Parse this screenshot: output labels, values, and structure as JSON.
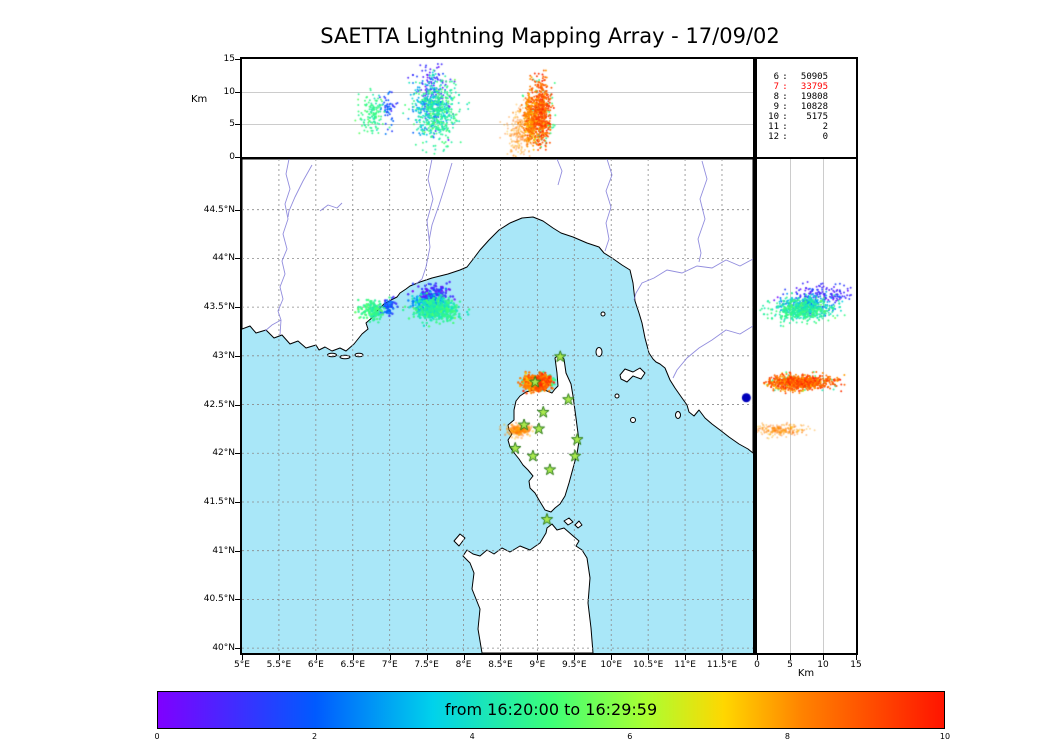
{
  "title": "SAETTA Lightning Mapping Array - 17/09/02",
  "stats_panel": {
    "rows": [
      {
        "label": "6",
        "value": "50905",
        "color": "#000000"
      },
      {
        "label": "7",
        "value": "33795",
        "color": "#ff0000"
      },
      {
        "label": "8",
        "value": "19808",
        "color": "#000000"
      },
      {
        "label": "9",
        "value": "10828",
        "color": "#000000"
      },
      {
        "label": "10",
        "value": "5175",
        "color": "#000000"
      },
      {
        "label": "11",
        "value": "2",
        "color": "#000000"
      },
      {
        "label": "12",
        "value": "0",
        "color": "#000000"
      }
    ]
  },
  "axes": {
    "top": {
      "ylabel": "Km",
      "yticks": [
        {
          "v": 0,
          "label": "0"
        },
        {
          "v": 5,
          "label": "5"
        },
        {
          "v": 10,
          "label": "10"
        },
        {
          "v": 15,
          "label": "15"
        }
      ]
    },
    "right": {
      "xlabel": "Km",
      "xticks": [
        {
          "v": 0,
          "label": "0"
        },
        {
          "v": 5,
          "label": "5"
        },
        {
          "v": 10,
          "label": "10"
        },
        {
          "v": 15,
          "label": "15"
        }
      ]
    },
    "map": {
      "lat_ticks": [
        {
          "v": 44.5,
          "label": "44.5°N"
        },
        {
          "v": 44,
          "label": "44°N"
        },
        {
          "v": 43.5,
          "label": "43.5°N"
        },
        {
          "v": 43,
          "label": "43°N"
        },
        {
          "v": 42.5,
          "label": "42.5°N"
        },
        {
          "v": 42,
          "label": "42°N"
        },
        {
          "v": 41.5,
          "label": "41.5°N"
        },
        {
          "v": 41,
          "label": "41°N"
        },
        {
          "v": 40.5,
          "label": "40.5°N"
        },
        {
          "v": 40,
          "label": "40°N"
        }
      ],
      "lon_ticks": [
        {
          "v": 5,
          "label": "5°E"
        },
        {
          "v": 5.5,
          "label": "5.5°E"
        },
        {
          "v": 6,
          "label": "6°E"
        },
        {
          "v": 6.5,
          "label": "6.5°E"
        },
        {
          "v": 7,
          "label": "7°E"
        },
        {
          "v": 7.5,
          "label": "7.5°E"
        },
        {
          "v": 8,
          "label": "8°E"
        },
        {
          "v": 8.5,
          "label": "8.5°E"
        },
        {
          "v": 9,
          "label": "9°E"
        },
        {
          "v": 9.5,
          "label": "9.5°E"
        },
        {
          "v": 10,
          "label": "10°E"
        },
        {
          "v": 10.5,
          "label": "10.5°E"
        },
        {
          "v": 11,
          "label": "11°E"
        },
        {
          "v": 11.5,
          "label": "11.5°E"
        }
      ]
    }
  },
  "colorbar": {
    "label": "from 16:20:00 to 16:29:59",
    "range": [
      0,
      10
    ],
    "ticks": [
      {
        "v": 0,
        "label": "0"
      },
      {
        "v": 2,
        "label": "2"
      },
      {
        "v": 4,
        "label": "4"
      },
      {
        "v": 6,
        "label": "6"
      },
      {
        "v": 8,
        "label": "8"
      },
      {
        "v": 10,
        "label": "10"
      }
    ],
    "stops": [
      [
        0,
        [
          127,
          0,
          255
        ]
      ],
      [
        0.2,
        [
          0,
          90,
          255
        ]
      ],
      [
        0.35,
        [
          0,
          210,
          235
        ]
      ],
      [
        0.5,
        [
          60,
          255,
          120
        ]
      ],
      [
        0.62,
        [
          170,
          255,
          50
        ]
      ],
      [
        0.72,
        [
          255,
          215,
          0
        ]
      ],
      [
        0.82,
        [
          255,
          130,
          0
        ]
      ],
      [
        1,
        [
          255,
          20,
          0
        ]
      ]
    ]
  },
  "colors": {
    "sea": "#a9e7f8",
    "land": "#ffffff",
    "coast": "#000000",
    "river": "#7f7ad8",
    "grid": "#8a8a8a",
    "station_fill": "#a9e84e",
    "station_edge": "#2b7a18",
    "frame": "#000000"
  },
  "chart_data": {
    "type": "scatter",
    "title": "SAETTA Lightning Mapping Array - 17/09/02",
    "time_range": [
      "16:20:00",
      "16:29:59"
    ],
    "colorbar_units": "minutes in window, rainbow colormap",
    "alt_range": [
      0,
      15
    ],
    "map": {
      "lon_range": [
        5,
        11.92
      ],
      "lat_range": [
        39.95,
        45.02
      ]
    },
    "panels": {
      "top": {
        "x": "longitude_deg_E",
        "y": "altitude_km"
      },
      "map": {
        "x": "longitude_deg_E",
        "y": "latitude_deg_N"
      },
      "right": {
        "x": "altitude_km",
        "y": "latitude_deg_N"
      }
    },
    "stations": [
      {
        "lon": 9.31,
        "lat": 42.99
      },
      {
        "lon": 8.97,
        "lat": 42.73
      },
      {
        "lon": 9.42,
        "lat": 42.55
      },
      {
        "lon": 9.08,
        "lat": 42.42
      },
      {
        "lon": 8.82,
        "lat": 42.29
      },
      {
        "lon": 9.02,
        "lat": 42.25
      },
      {
        "lon": 9.54,
        "lat": 42.14
      },
      {
        "lon": 8.7,
        "lat": 42.05
      },
      {
        "lon": 8.94,
        "lat": 41.97
      },
      {
        "lon": 9.51,
        "lat": 41.97
      },
      {
        "lon": 9.17,
        "lat": 41.83
      },
      {
        "lon": 9.13,
        "lat": 41.32
      }
    ],
    "markers": [
      {
        "lon": 11.83,
        "lat": 42.57,
        "color": "#0000bb",
        "r": 4.5
      }
    ],
    "storms": [
      {
        "name": "azur-west-early",
        "count": 55,
        "lon": [
          6.98,
          0.05
        ],
        "lat": [
          43.5,
          0.04
        ],
        "alt": [
          7.2,
          1.4
        ],
        "alt_clip": [
          3,
          11
        ],
        "t": [
          1.7,
          0.5
        ],
        "t_clip": [
          0.2,
          3
        ],
        "alpha": 0.9
      },
      {
        "name": "azur-west-main",
        "count": 135,
        "lon": [
          6.78,
          0.09
        ],
        "lat": [
          43.47,
          0.05
        ],
        "alt": [
          6.5,
          1.6
        ],
        "alt_clip": [
          3.2,
          10.5
        ],
        "t": [
          4.7,
          0.3
        ],
        "t_clip": [
          3.8,
          5.4
        ],
        "alpha": 0.9
      },
      {
        "name": "azur-mid-early",
        "count": 130,
        "lon": [
          7.58,
          0.12
        ],
        "lat": [
          43.64,
          0.045
        ],
        "alt": [
          10.5,
          2.6
        ],
        "alt_clip": [
          0.5,
          14.3
        ],
        "t": [
          0.9,
          0.5
        ],
        "t_clip": [
          0,
          2
        ],
        "alpha": 0.9
      },
      {
        "name": "azur-mid-mid",
        "count": 170,
        "lon": [
          7.54,
          0.12
        ],
        "lat": [
          43.54,
          0.05
        ],
        "alt": [
          7.5,
          2.2
        ],
        "alt_clip": [
          0.5,
          13
        ],
        "t": [
          2.9,
          0.5
        ],
        "t_clip": [
          2,
          3.8
        ],
        "alpha": 0.9
      },
      {
        "name": "azur-mid-main",
        "count": 460,
        "lon": [
          7.65,
          0.14
        ],
        "lat": [
          43.47,
          0.06
        ],
        "alt": [
          7.0,
          2.4
        ],
        "alt_clip": [
          0.5,
          13.5
        ],
        "t": [
          4.5,
          0.45
        ],
        "t_clip": [
          3.6,
          5.6
        ],
        "alpha": 0.9
      },
      {
        "name": "corsica-green",
        "count": 65,
        "lon": [
          9.03,
          0.13
        ],
        "lat": [
          42.72,
          0.05
        ],
        "alt": [
          7.0,
          3.4
        ],
        "alt_clip": [
          0.3,
          14
        ],
        "t": [
          4.8,
          0.3
        ],
        "t_clip": [
          4.1,
          5.5
        ],
        "alpha": 0.9
      },
      {
        "name": "corsica-main-w",
        "count": 430,
        "lon": [
          8.93,
          0.055
        ],
        "lat": [
          42.72,
          0.035
        ],
        "alt": [
          5.8,
          2.2
        ],
        "alt_clip": [
          1,
          13.4
        ],
        "t": [
          8.3,
          0.6
        ],
        "t_clip": [
          7.2,
          9.9
        ],
        "alpha": 0.95
      },
      {
        "name": "corsica-main-e",
        "count": 430,
        "lon": [
          9.07,
          0.05
        ],
        "lat": [
          42.73,
          0.035
        ],
        "alt": [
          6.6,
          2.5
        ],
        "alt_clip": [
          1,
          13.5
        ],
        "t": [
          8.9,
          0.65
        ],
        "t_clip": [
          7.4,
          10
        ],
        "alpha": 0.95
      },
      {
        "name": "corsica-south-band",
        "count": 230,
        "lon": [
          8.75,
          0.09
        ],
        "lat": [
          42.24,
          0.03
        ],
        "alt": [
          3.8,
          2.1
        ],
        "alt_clip": [
          0,
          9
        ],
        "t": [
          8.1,
          0.35
        ],
        "t_clip": [
          7.3,
          9
        ],
        "alpha": 0.4
      }
    ]
  }
}
